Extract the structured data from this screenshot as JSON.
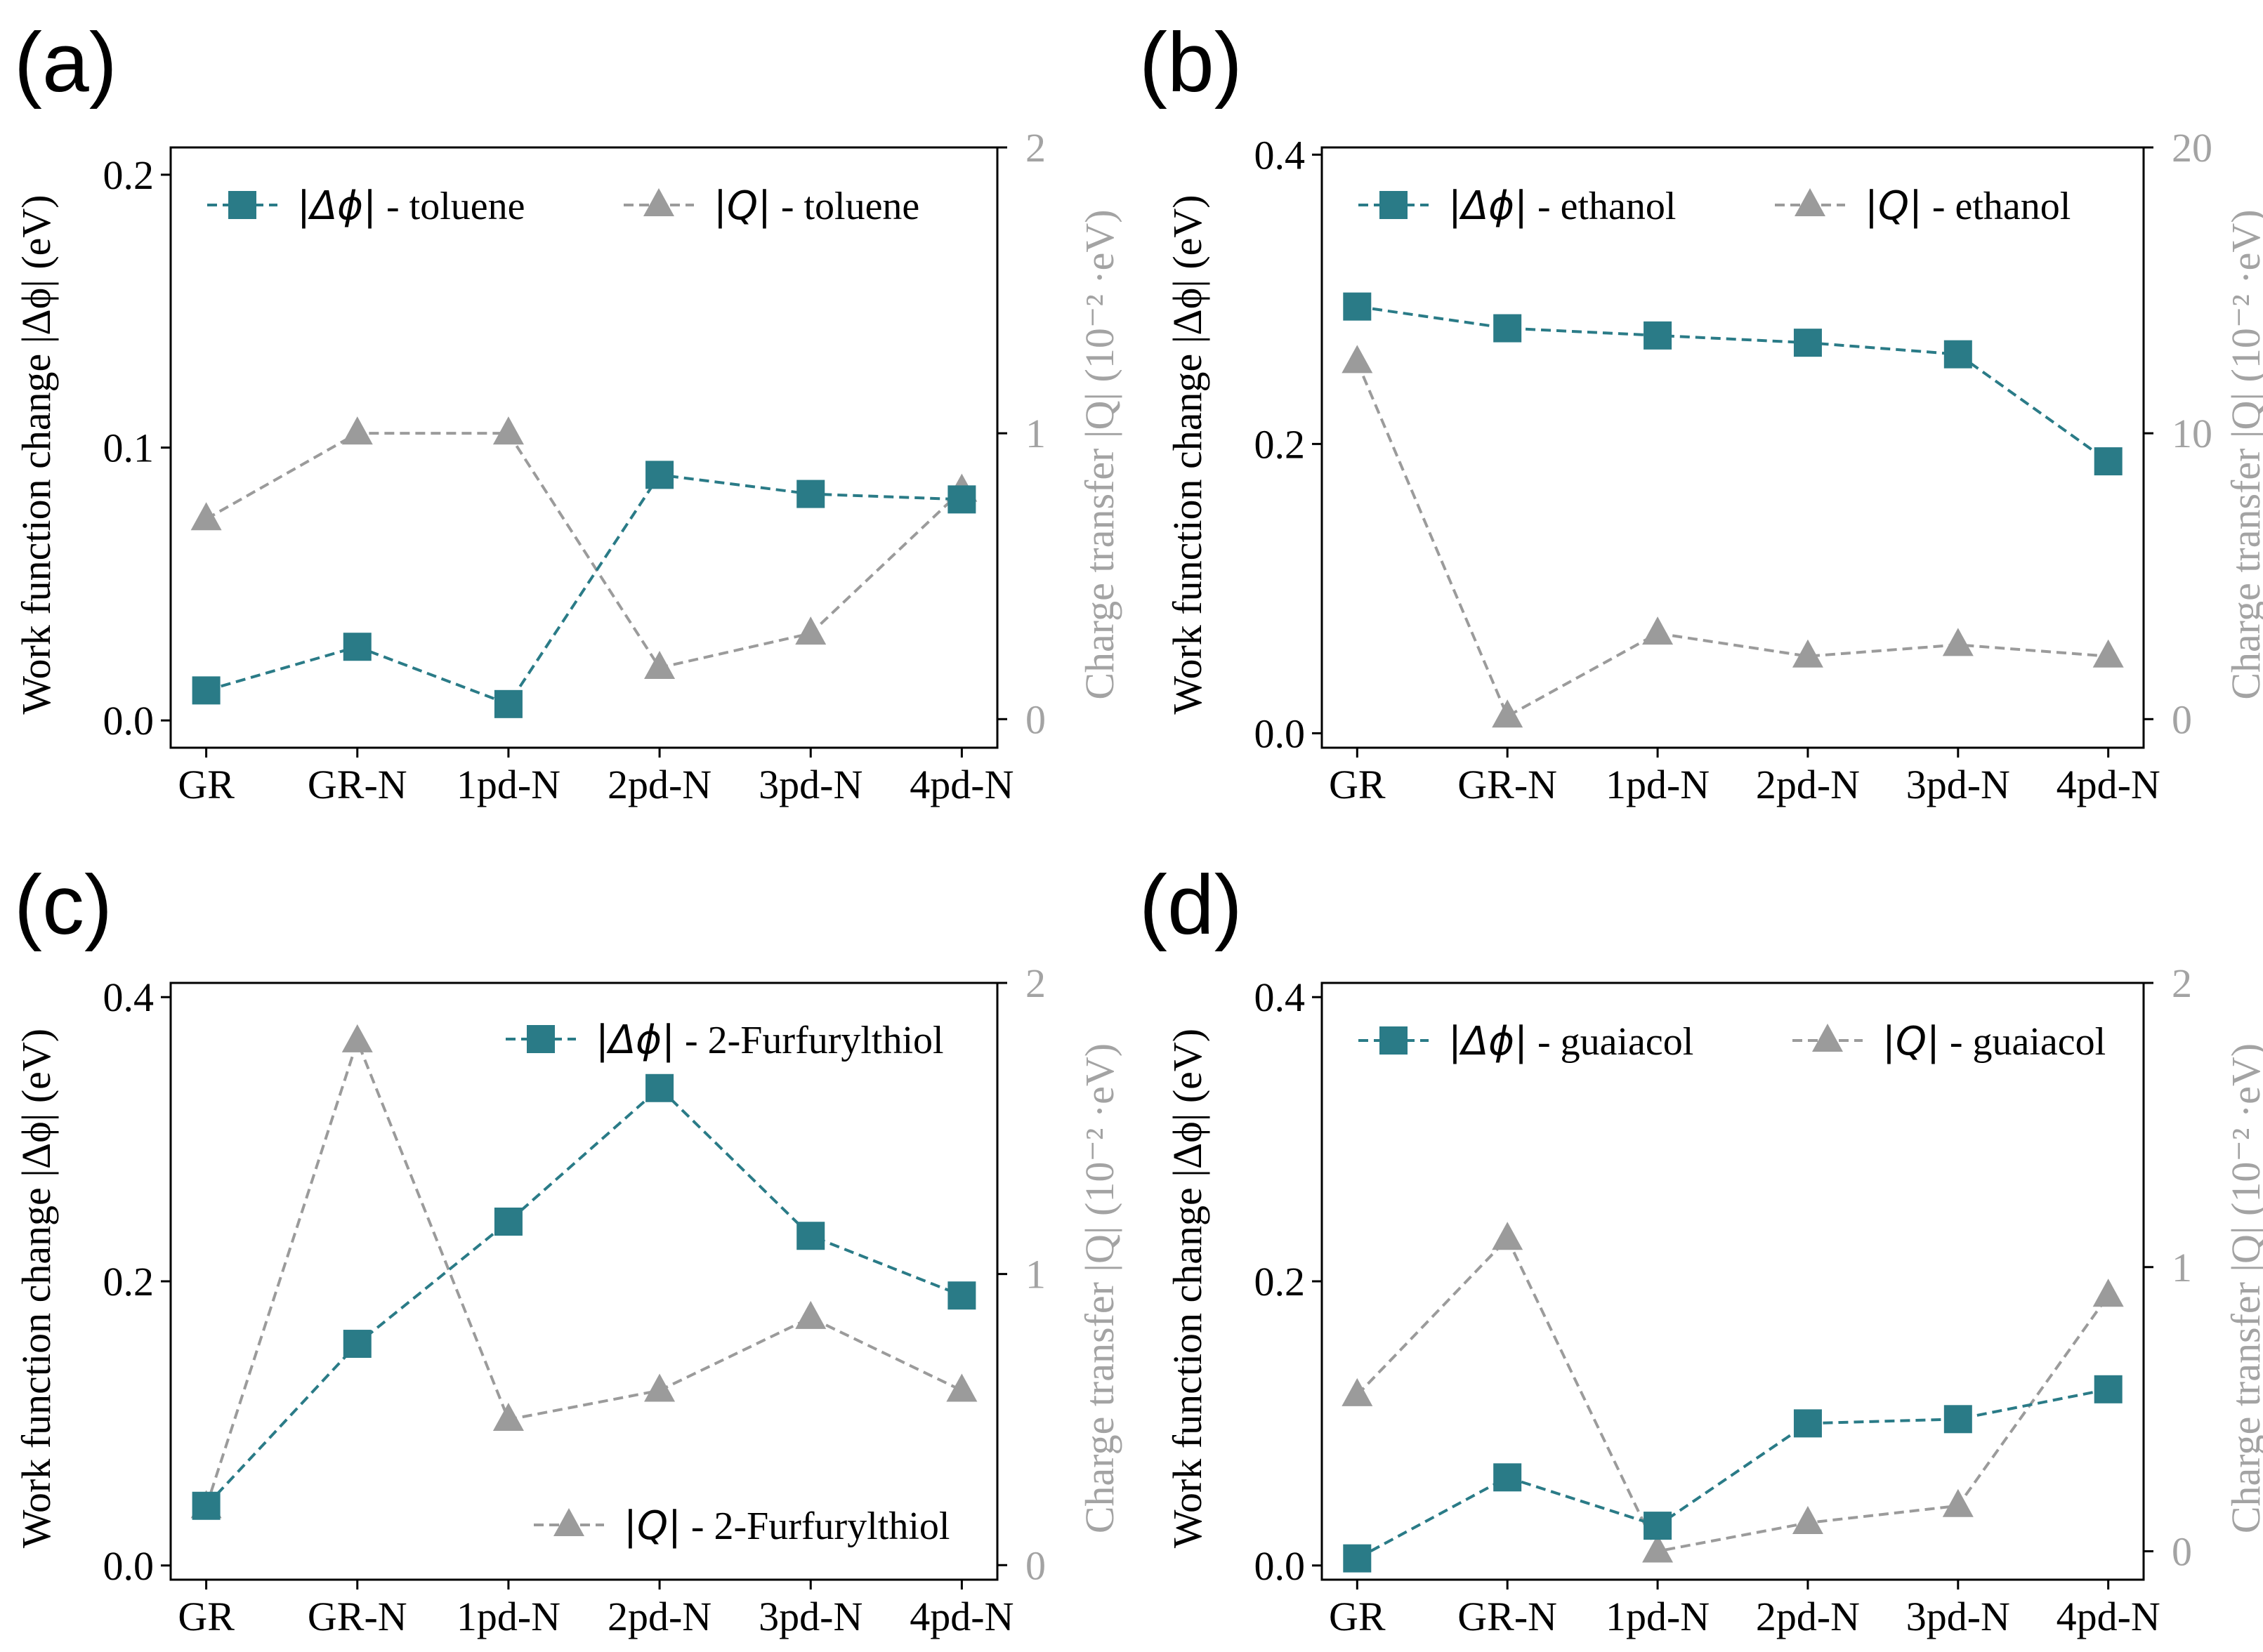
{
  "figure": {
    "primary_color": "#2a7b87",
    "secondary_color": "#9b9b9b"
  },
  "chart_data": [
    {
      "type": "line",
      "panel_label": "(a)",
      "categories": [
        "GR",
        "GR-N",
        "1pd-N",
        "2pd-N",
        "3pd-N",
        "4pd-N"
      ],
      "y_left": {
        "label_text": "Work function change ",
        "label_symbol": "|Δϕ|",
        "label_unit": " (eV)",
        "lim": [
          -0.01,
          0.21
        ],
        "ticks": [
          0.0,
          0.1,
          0.2
        ],
        "tick_labels": [
          "0.0",
          "0.1",
          "0.2"
        ]
      },
      "y_right": {
        "label_text": "Charge transfer ",
        "label_symbol": "|Q|",
        "label_unit": " (10⁻² ·eV)",
        "lim": [
          -0.1,
          2.0
        ],
        "ticks": [
          0,
          1,
          2
        ],
        "tick_labels": [
          "0",
          "1",
          "2"
        ]
      },
      "series": [
        {
          "name": "|Δϕ| - toluene",
          "sym": "|Δϕ|",
          "sub": " - toluene",
          "axis": "left",
          "marker": "square",
          "values": [
            0.011,
            0.027,
            0.006,
            0.09,
            0.083,
            0.081
          ]
        },
        {
          "name": "|Q| - toluene",
          "sym": "|Q|",
          "sub": " - toluene",
          "axis": "right",
          "marker": "triangle",
          "values": [
            0.7,
            1.0,
            1.0,
            0.18,
            0.3,
            0.8
          ]
        }
      ],
      "legend": {
        "layout": "row",
        "location": "top"
      }
    },
    {
      "type": "line",
      "panel_label": "(b)",
      "categories": [
        "GR",
        "GR-N",
        "1pd-N",
        "2pd-N",
        "3pd-N",
        "4pd-N"
      ],
      "y_left": {
        "label_text": "Work function change ",
        "label_symbol": "|Δϕ|",
        "label_unit": " (eV)",
        "lim": [
          -0.01,
          0.405
        ],
        "ticks": [
          0.0,
          0.2,
          0.4
        ],
        "tick_labels": [
          "0.0",
          "0.2",
          "0.4"
        ]
      },
      "y_right": {
        "label_text": "Charge transfer ",
        "label_symbol": "|Q|",
        "label_unit": " (10⁻² ·eV)",
        "lim": [
          -1,
          20
        ],
        "ticks": [
          0,
          10,
          20
        ],
        "tick_labels": [
          "0",
          "10",
          "20"
        ]
      },
      "series": [
        {
          "name": "|Δϕ| - ethanol",
          "sym": "|Δϕ|",
          "sub": " - ethanol",
          "axis": "left",
          "marker": "square",
          "values": [
            0.295,
            0.28,
            0.275,
            0.27,
            0.262,
            0.188
          ]
        },
        {
          "name": "|Q| - ethanol",
          "sym": "|Q|",
          "sub": " - ethanol",
          "axis": "right",
          "marker": "triangle",
          "values": [
            12.5,
            0.1,
            3.0,
            2.2,
            2.6,
            2.2
          ]
        }
      ],
      "legend": {
        "layout": "row",
        "location": "top"
      }
    },
    {
      "type": "line",
      "panel_label": "(c)",
      "categories": [
        "GR",
        "GR-N",
        "1pd-N",
        "2pd-N",
        "3pd-N",
        "4pd-N"
      ],
      "y_left": {
        "label_text": "Work function change ",
        "label_symbol": "|Δϕ|",
        "label_unit": " (eV)",
        "lim": [
          -0.01,
          0.41
        ],
        "ticks": [
          0.0,
          0.2,
          0.4
        ],
        "tick_labels": [
          "0.0",
          "0.2",
          "0.4"
        ]
      },
      "y_right": {
        "label_text": "Charge transfer ",
        "label_symbol": "|Q|",
        "label_unit": " (10⁻² ·eV)",
        "lim": [
          -0.05,
          2.0
        ],
        "ticks": [
          0,
          1,
          2
        ],
        "tick_labels": [
          "0",
          "1",
          "2"
        ]
      },
      "series": [
        {
          "name": "|Δϕ| - 2-Furfurylthiol",
          "sym": "|Δϕ|",
          "sub": " - 2-Furfurylthiol",
          "axis": "left",
          "marker": "square",
          "values": [
            0.042,
            0.156,
            0.242,
            0.336,
            0.232,
            0.19
          ]
        },
        {
          "name": "|Q| - 2-Furfurylthiol",
          "sym": "|Q|",
          "sub": " - 2-Furfurylthiol",
          "axis": "right",
          "marker": "triangle",
          "values": [
            0.2,
            1.8,
            0.5,
            0.6,
            0.85,
            0.6
          ]
        }
      ],
      "legend": {
        "layout": "split",
        "location": "top-right and bottom-right"
      }
    },
    {
      "type": "line",
      "panel_label": "(d)",
      "categories": [
        "GR",
        "GR-N",
        "1pd-N",
        "2pd-N",
        "3pd-N",
        "4pd-N"
      ],
      "y_left": {
        "label_text": "Work function change ",
        "label_symbol": "|Δϕ|",
        "label_unit": " (eV)",
        "lim": [
          -0.01,
          0.41
        ],
        "ticks": [
          0.0,
          0.2,
          0.4
        ],
        "tick_labels": [
          "0.0",
          "0.2",
          "0.4"
        ]
      },
      "y_right": {
        "label_text": "Charge transfer ",
        "label_symbol": "|Q|",
        "label_unit": " (10⁻² ·eV)",
        "lim": [
          -0.1,
          2.0
        ],
        "ticks": [
          0,
          1,
          2
        ],
        "tick_labels": [
          "0",
          "1",
          "2"
        ]
      },
      "series": [
        {
          "name": "|Δϕ| - guaiacol",
          "sym": "|Δϕ|",
          "sub": " - guaiacol",
          "axis": "left",
          "marker": "square",
          "values": [
            0.005,
            0.062,
            0.028,
            0.1,
            0.103,
            0.124
          ]
        },
        {
          "name": "|Q| - guaiacol",
          "sym": "|Q|",
          "sub": " - guaiacol",
          "axis": "right",
          "marker": "triangle",
          "values": [
            0.55,
            1.1,
            0.0,
            0.1,
            0.16,
            0.9
          ]
        }
      ],
      "legend": {
        "layout": "row",
        "location": "top"
      }
    }
  ]
}
